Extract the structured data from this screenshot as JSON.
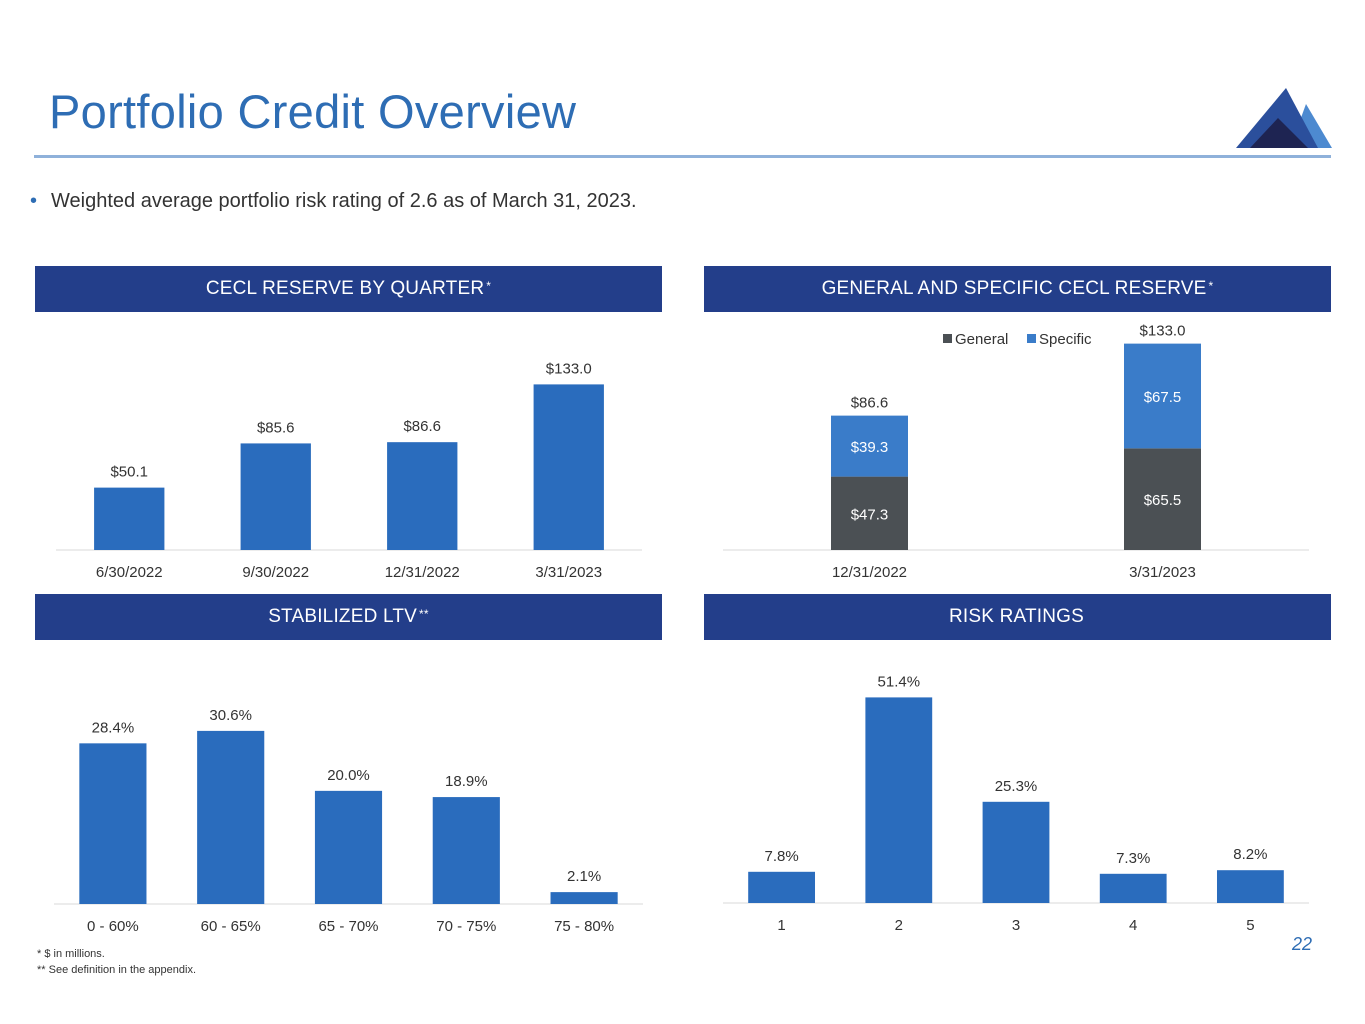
{
  "page": {
    "title": "Portfolio Credit Overview",
    "bullet": "Weighted average portfolio risk rating of 2.6 as of March 31, 2023.",
    "page_number": "22",
    "footnotes": [
      "* $ in millions.",
      "** See definition in the appendix."
    ]
  },
  "colors": {
    "brand_blue": "#2E6DB4",
    "header_navy": "#233E8A",
    "bar_blue": "#2A6CBD",
    "specific_blue": "#3A7CC9",
    "general_gray": "#4B5054",
    "logo_dark": "#1E2452",
    "logo_mid": "#2B4F9C",
    "logo_light": "#4D8AD0"
  },
  "icons": {
    "logo": "mountain-logo-icon"
  },
  "panels": {
    "cecl": {
      "header": "CECL RESERVE BY QUARTER",
      "sup": "*"
    },
    "general_specific": {
      "header": "GENERAL AND SPECIFIC CECL RESERVE",
      "sup": "*"
    },
    "ltv": {
      "header": "STABILIZED LTV",
      "sup": "**"
    },
    "risk": {
      "header": "RISK RATINGS",
      "sup": ""
    }
  },
  "chart_data": [
    {
      "id": "cecl",
      "type": "bar",
      "title": "CECL RESERVE BY QUARTER*",
      "categories": [
        "6/30/2022",
        "9/30/2022",
        "12/31/2022",
        "3/31/2023"
      ],
      "values": [
        50.1,
        85.6,
        86.6,
        133.0
      ],
      "labels": [
        "$50.1",
        "$85.6",
        "$86.6",
        "$133.0"
      ],
      "ylim": [
        0,
        155
      ],
      "xlabel": "",
      "ylabel": "",
      "grid": false
    },
    {
      "id": "general_specific",
      "type": "bar",
      "stacked": true,
      "title": "GENERAL AND SPECIFIC CECL RESERVE*",
      "categories": [
        "12/31/2022",
        "3/31/2023"
      ],
      "series": [
        {
          "name": "General",
          "values": [
            47.3,
            65.5
          ],
          "labels": [
            "$47.3",
            "$65.5"
          ]
        },
        {
          "name": "Specific",
          "values": [
            39.3,
            67.5
          ],
          "labels": [
            "$39.3",
            "$67.5"
          ]
        }
      ],
      "totals": [
        "$86.6",
        "$133.0"
      ],
      "legend": "top-right",
      "ylim": [
        0,
        145
      ],
      "grid": false
    },
    {
      "id": "ltv",
      "type": "bar",
      "title": "STABILIZED LTV**",
      "categories": [
        "0 - 60%",
        "60 - 65%",
        "65 - 70%",
        "70 - 75%",
        "75 - 80%"
      ],
      "values": [
        28.4,
        30.6,
        20.0,
        18.9,
        2.1
      ],
      "labels": [
        "28.4%",
        "30.6%",
        "20.0%",
        "18.9%",
        "2.1%"
      ],
      "ylim": [
        0,
        35
      ],
      "grid": false
    },
    {
      "id": "risk",
      "type": "bar",
      "title": "RISK RATINGS",
      "categories": [
        "1",
        "2",
        "3",
        "4",
        "5"
      ],
      "values": [
        7.8,
        51.4,
        25.3,
        7.3,
        8.2
      ],
      "labels": [
        "7.8%",
        "51.4%",
        "25.3%",
        "7.3%",
        "8.2%"
      ],
      "ylim": [
        0,
        59
      ],
      "grid": false
    }
  ]
}
